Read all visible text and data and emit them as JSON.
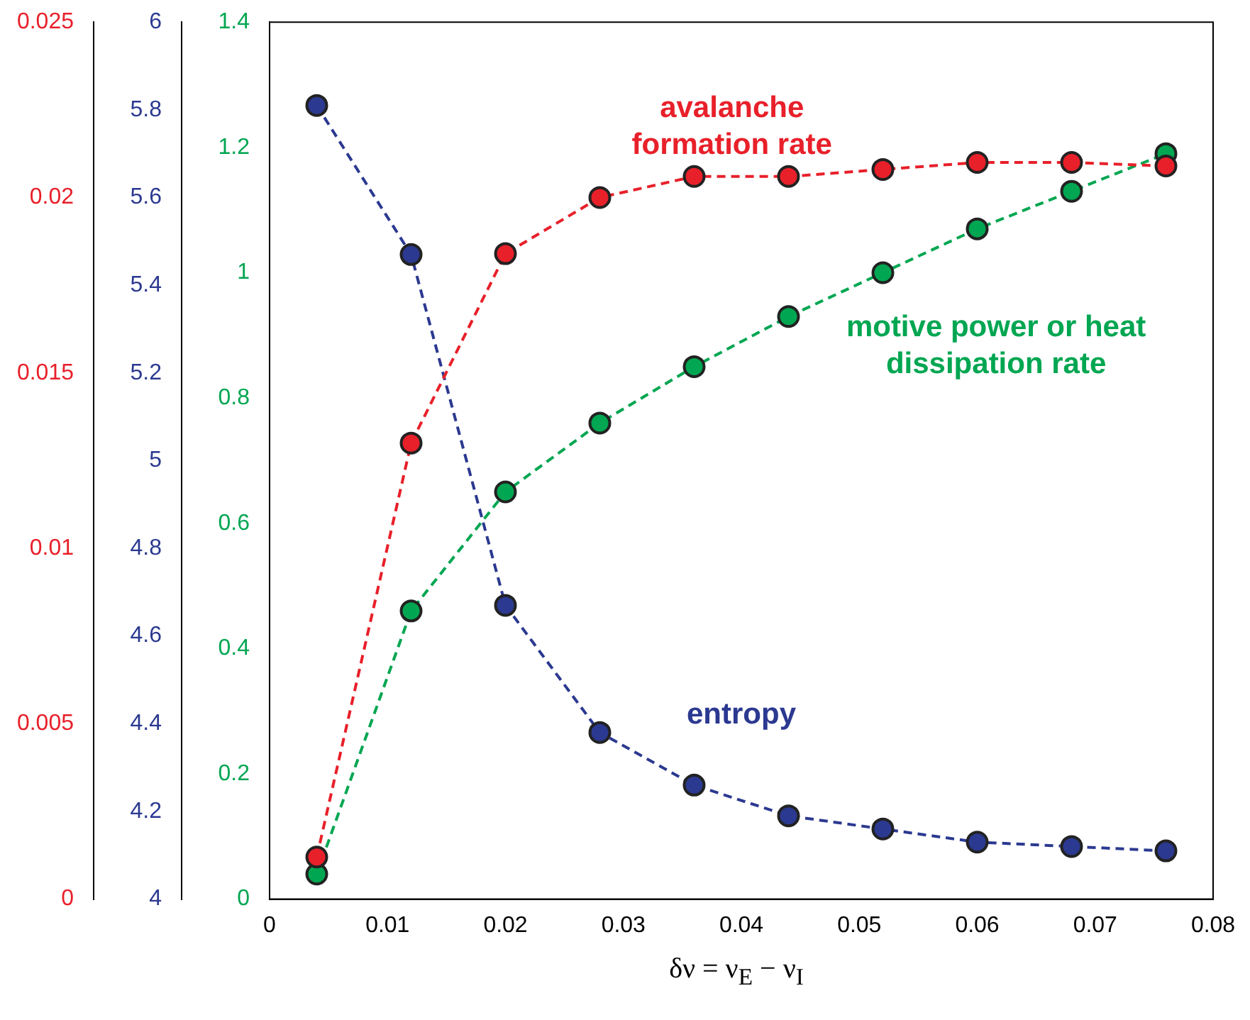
{
  "chart_data": {
    "type": "line",
    "xlabel": "δν = ν$_{E}$ − ν$_{I}$",
    "x": [
      0.004,
      0.012,
      0.02,
      0.028,
      0.036,
      0.044,
      0.052,
      0.06,
      0.068,
      0.076
    ],
    "series": [
      {
        "name": "avalanche formation rate",
        "color": "#e8202a",
        "axis": "y3",
        "values": [
          0.0012,
          0.013,
          0.0184,
          0.02,
          0.0206,
          0.0206,
          0.0208,
          0.021,
          0.021,
          0.0209
        ]
      },
      {
        "name": "entropy",
        "color": "#2b3990",
        "axis": "y2",
        "values": [
          5.81,
          5.47,
          4.67,
          4.38,
          4.26,
          4.19,
          4.16,
          4.13,
          4.12,
          4.11
        ]
      },
      {
        "name": "motive power or heat dissipation rate",
        "color": "#00a651",
        "values": [
          0.04,
          0.46,
          0.65,
          0.76,
          0.85,
          0.93,
          1.0,
          1.07,
          1.13,
          1.19
        ]
      }
    ],
    "xlim": [
      0,
      0.08
    ],
    "xticks": [
      0,
      0.01,
      0.02,
      0.03,
      0.04,
      0.05,
      0.06,
      0.07,
      0.08
    ],
    "ylim": [
      0,
      1.4
    ],
    "yticks": [
      0,
      0.2,
      0.4,
      0.6,
      0.8,
      1,
      1.2,
      1.4
    ],
    "y2lim": [
      4,
      6
    ],
    "y2ticks": [
      4,
      4.2,
      4.4,
      4.6,
      4.8,
      5,
      5.2,
      5.4,
      5.6,
      5.8,
      6
    ],
    "y3lim": [
      0,
      0.025
    ],
    "y3ticks": [
      0,
      0.005,
      0.01,
      0.015,
      0.02,
      0.025
    ],
    "grid": false,
    "legend": false,
    "marker": "circle",
    "line_style": "dashed"
  }
}
